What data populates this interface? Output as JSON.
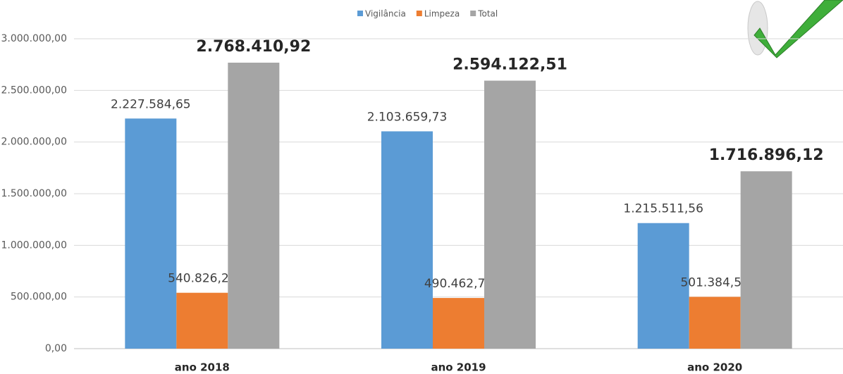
{
  "chart_data": {
    "type": "bar",
    "categories": [
      "ano 2018",
      "ano 2019",
      "ano 2020"
    ],
    "series": [
      {
        "name": "Vigilância",
        "color": "#5b9bd5",
        "values": [
          2227584.65,
          2103659.73,
          1215511.56
        ],
        "value_labels": [
          "2.227.584,65",
          "2.103.659,73",
          "1.215.511,56"
        ]
      },
      {
        "name": "Limpeza",
        "color": "#ed7d31",
        "values": [
          540826.27,
          490462.78,
          501384.56
        ],
        "value_labels": [
          "540.826,27",
          "490.462,78",
          "501.384,56"
        ]
      },
      {
        "name": "Total",
        "color": "#a5a5a5",
        "values": [
          2768410.92,
          2594122.51,
          1716896.12
        ],
        "value_labels": [
          "2.768.410,92",
          "2.594.122,51",
          "1.716.896,12"
        ]
      }
    ],
    "ylim": [
      0,
      3000000
    ],
    "yticks": [
      {
        "value": 0,
        "label": "0,00"
      },
      {
        "value": 500000,
        "label": "500.000,00"
      },
      {
        "value": 1000000,
        "label": "1.000.000,00"
      },
      {
        "value": 1500000,
        "label": "1.500.000,00"
      },
      {
        "value": 2000000,
        "label": "2.000.000,00"
      },
      {
        "value": 2500000,
        "label": "2.500.000,00"
      },
      {
        "value": 3000000,
        "label": "3.000.000,00"
      }
    ],
    "grid": true
  }
}
